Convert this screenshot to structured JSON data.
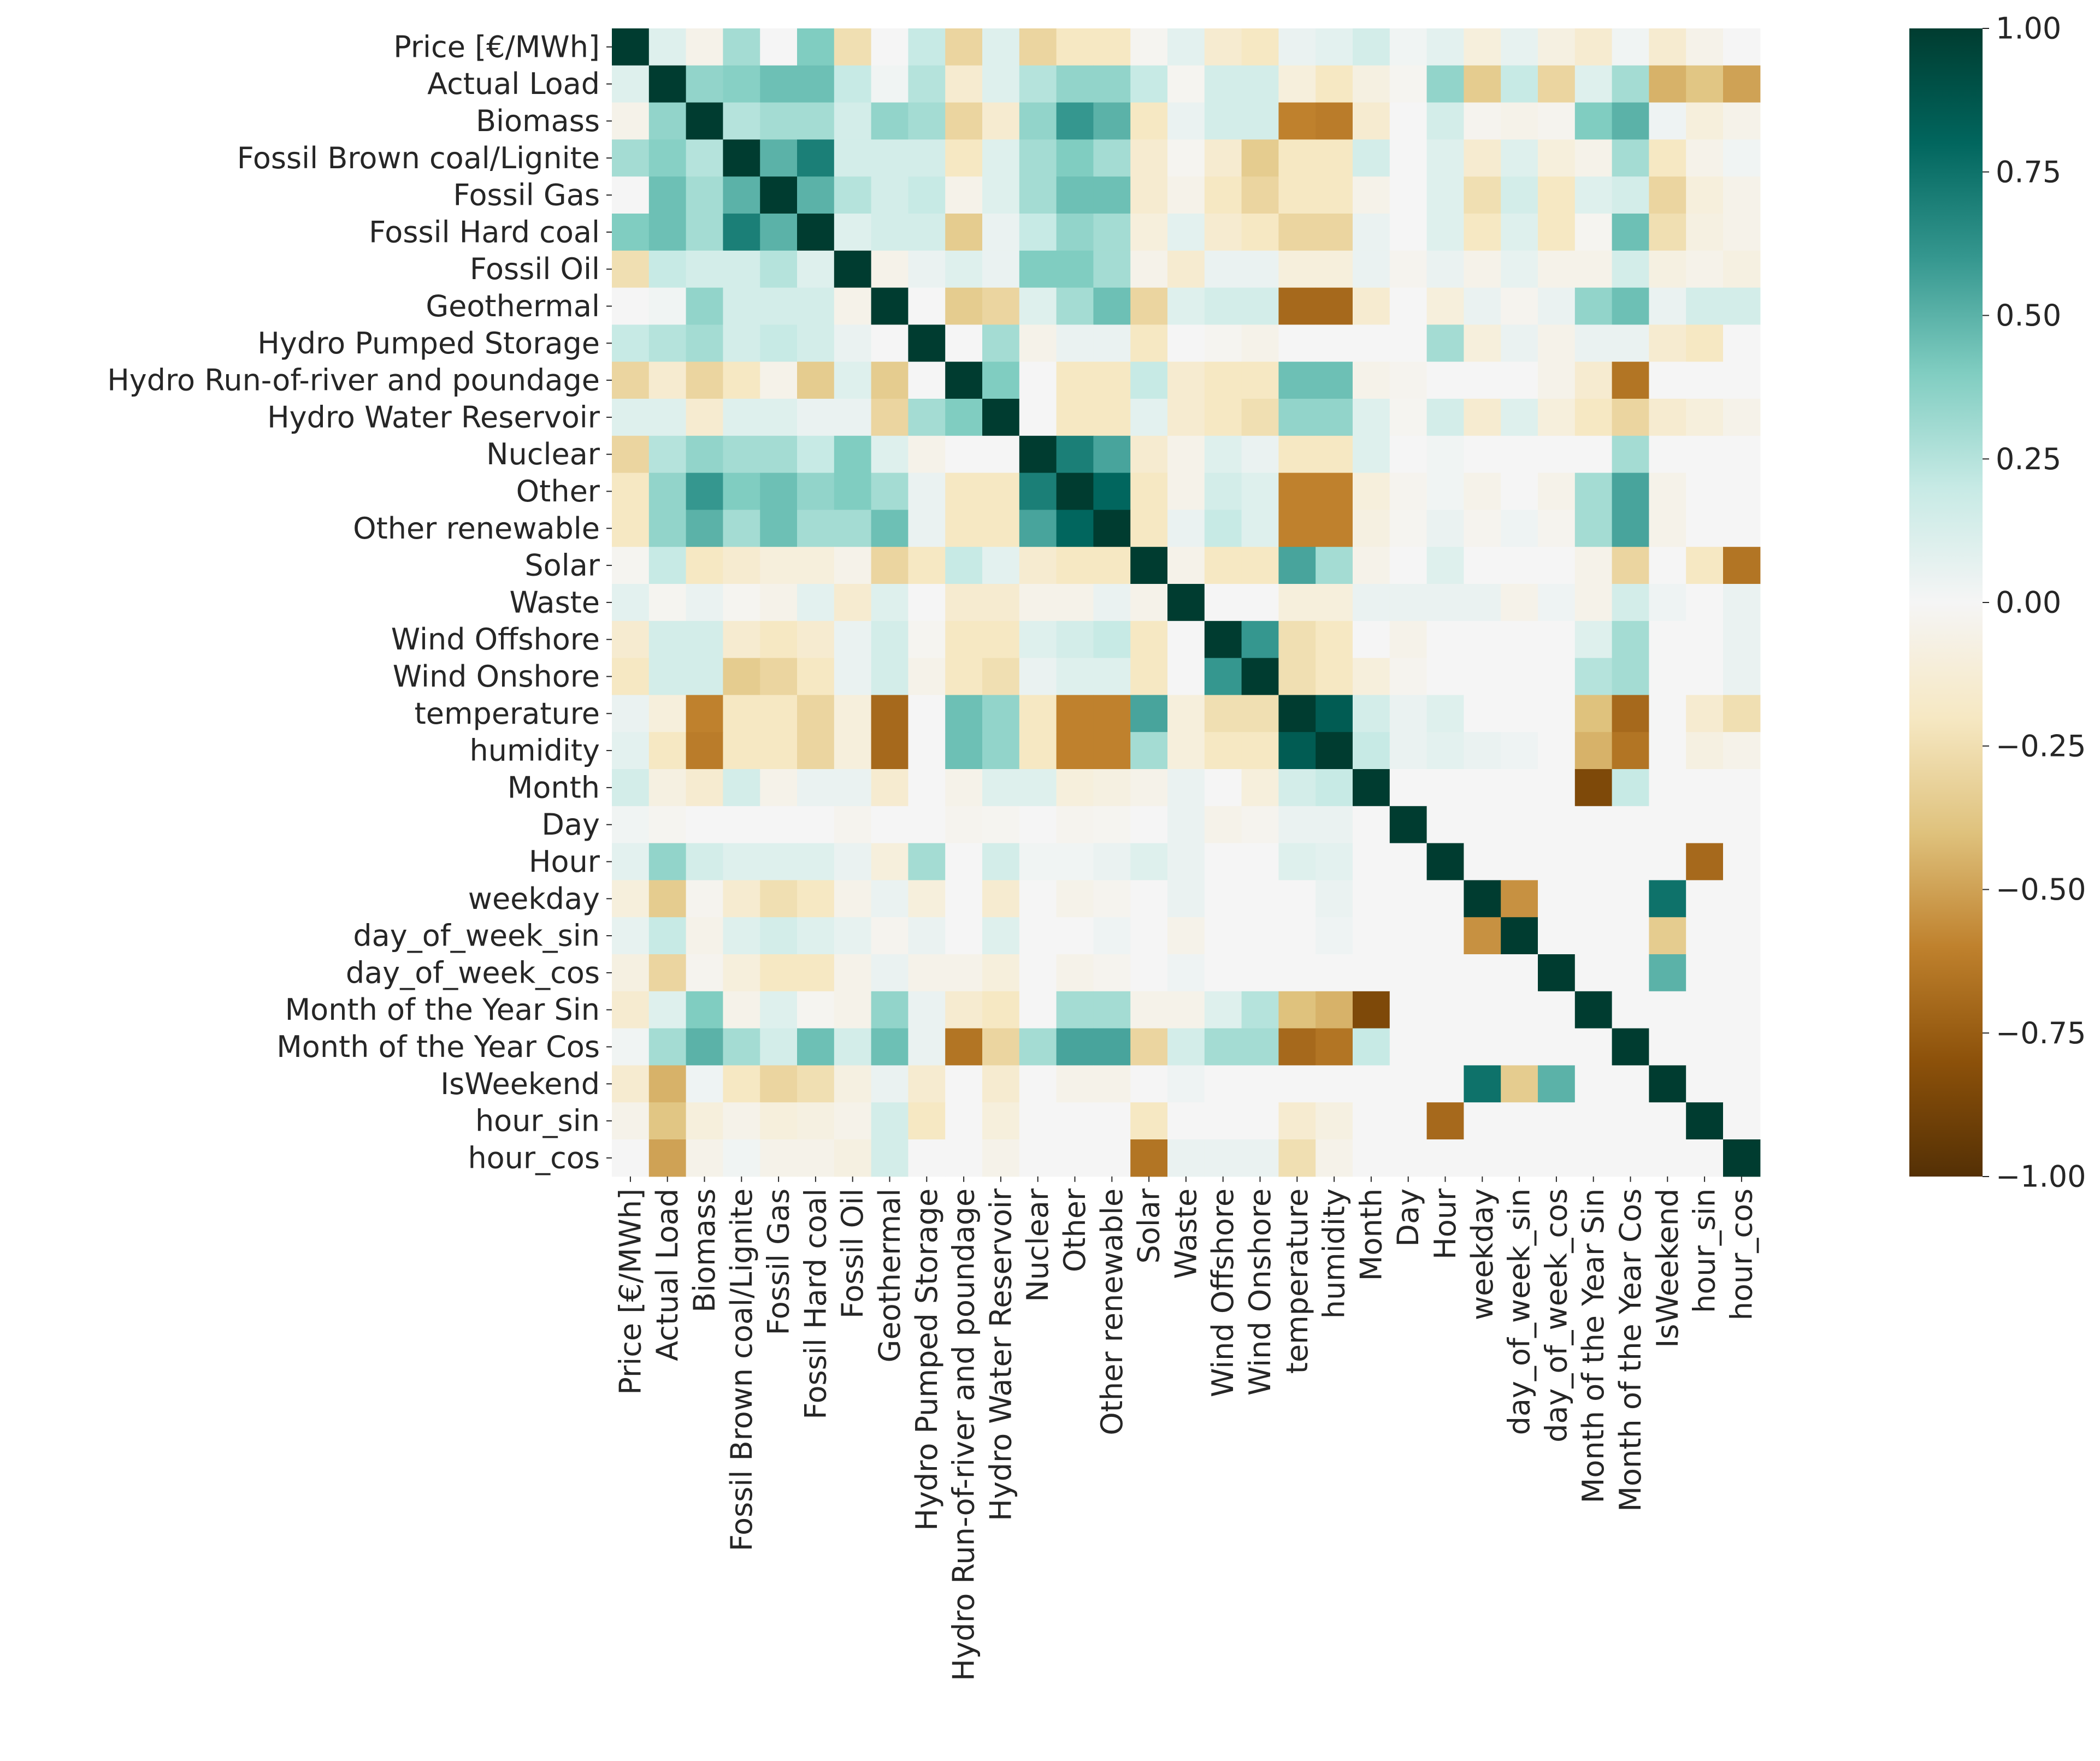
{
  "chart_data": {
    "type": "heatmap",
    "title": "",
    "xlabel": "",
    "ylabel": "",
    "colormap": "BrBG",
    "vmin": -1.0,
    "vmax": 1.0,
    "colorbar_ticks": [
      "1.00",
      "0.75",
      "0.50",
      "0.25",
      "0.00",
      "−0.25",
      "−0.50",
      "−0.75",
      "−1.00"
    ],
    "colorbar_tick_values": [
      1.0,
      0.75,
      0.5,
      0.25,
      0.0,
      -0.25,
      -0.5,
      -0.75,
      -1.0
    ],
    "labels": [
      "Price [€/MWh]",
      "Actual Load",
      "Biomass",
      "Fossil Brown coal/Lignite",
      "Fossil Gas",
      "Fossil Hard coal",
      "Fossil Oil",
      "Geothermal",
      "Hydro Pumped Storage",
      "Hydro Run-of-river and poundage",
      "Hydro Water Reservoir",
      "Nuclear",
      "Other",
      "Other renewable",
      "Solar",
      "Waste",
      "Wind Offshore",
      "Wind Onshore",
      "temperature",
      "humidity",
      "Month",
      "Day",
      "Hour",
      "weekday",
      "day_of_week_sin",
      "day_of_week_cos",
      "Month of the Year Sin",
      "Month of the Year Cos",
      "IsWeekend",
      "hour_sin",
      "hour_cos"
    ],
    "values": [
      [
        1.0,
        0.1,
        -0.05,
        0.3,
        0.0,
        0.4,
        -0.25,
        0.0,
        0.2,
        -0.3,
        0.1,
        -0.3,
        -0.2,
        -0.2,
        -0.02,
        0.08,
        -0.15,
        -0.2,
        0.05,
        0.08,
        0.15,
        0.02,
        0.08,
        -0.1,
        0.06,
        -0.08,
        -0.15,
        0.02,
        -0.15,
        -0.05,
        0.0
      ],
      [
        0.1,
        1.0,
        0.35,
        0.38,
        0.45,
        0.45,
        0.2,
        0.02,
        0.25,
        -0.15,
        0.1,
        0.25,
        0.35,
        0.35,
        0.2,
        -0.02,
        0.15,
        0.15,
        -0.1,
        -0.2,
        -0.08,
        -0.02,
        0.35,
        -0.35,
        0.2,
        -0.3,
        0.1,
        0.3,
        -0.45,
        -0.38,
        -0.5
      ],
      [
        -0.05,
        0.35,
        1.0,
        0.25,
        0.3,
        0.3,
        0.15,
        0.35,
        0.3,
        -0.3,
        -0.15,
        0.35,
        0.6,
        0.5,
        -0.2,
        0.05,
        0.15,
        0.15,
        -0.6,
        -0.62,
        -0.15,
        0.0,
        0.15,
        -0.03,
        -0.05,
        -0.03,
        0.4,
        0.5,
        0.03,
        -0.1,
        -0.05
      ],
      [
        0.3,
        0.38,
        0.25,
        1.0,
        0.5,
        0.7,
        0.15,
        0.15,
        0.15,
        -0.2,
        0.1,
        0.3,
        0.4,
        0.3,
        -0.15,
        -0.02,
        -0.15,
        -0.35,
        -0.2,
        -0.2,
        0.15,
        0.0,
        0.1,
        -0.15,
        0.1,
        -0.1,
        -0.05,
        0.3,
        -0.2,
        -0.05,
        0.02
      ],
      [
        0.0,
        0.45,
        0.3,
        0.5,
        1.0,
        0.5,
        0.25,
        0.15,
        0.2,
        -0.05,
        0.1,
        0.3,
        0.45,
        0.45,
        -0.15,
        -0.05,
        -0.2,
        -0.3,
        -0.2,
        -0.2,
        -0.05,
        0.0,
        0.1,
        -0.25,
        0.15,
        -0.2,
        0.1,
        0.15,
        -0.3,
        -0.1,
        -0.05
      ],
      [
        0.4,
        0.45,
        0.3,
        0.7,
        0.5,
        1.0,
        0.1,
        0.15,
        0.15,
        -0.35,
        0.05,
        0.2,
        0.35,
        0.3,
        -0.1,
        0.08,
        -0.15,
        -0.2,
        -0.3,
        -0.3,
        0.05,
        0.0,
        0.1,
        -0.2,
        0.1,
        -0.2,
        -0.02,
        0.45,
        -0.25,
        -0.08,
        -0.05
      ],
      [
        -0.25,
        0.2,
        0.15,
        0.15,
        0.25,
        0.1,
        1.0,
        -0.05,
        0.05,
        0.1,
        0.05,
        0.4,
        0.4,
        0.3,
        -0.05,
        -0.15,
        0.05,
        0.05,
        -0.1,
        -0.1,
        0.05,
        -0.03,
        0.05,
        -0.05,
        0.06,
        -0.05,
        -0.05,
        0.15,
        -0.08,
        -0.05,
        -0.08
      ],
      [
        0.0,
        0.02,
        0.35,
        0.15,
        0.15,
        0.15,
        -0.05,
        1.0,
        0.0,
        -0.35,
        -0.3,
        0.1,
        0.3,
        0.45,
        -0.3,
        0.1,
        0.15,
        0.15,
        -0.7,
        -0.7,
        -0.15,
        0.0,
        -0.1,
        0.05,
        -0.03,
        0.05,
        0.35,
        0.45,
        0.05,
        0.15,
        0.15
      ],
      [
        0.2,
        0.25,
        0.3,
        0.15,
        0.2,
        0.15,
        0.05,
        0.0,
        1.0,
        0.0,
        0.3,
        -0.05,
        0.05,
        0.05,
        -0.2,
        0.0,
        -0.02,
        -0.05,
        0.0,
        0.0,
        0.0,
        0.0,
        0.3,
        -0.1,
        0.05,
        -0.05,
        0.05,
        0.05,
        -0.15,
        -0.2,
        0.0
      ],
      [
        -0.3,
        -0.15,
        -0.3,
        -0.2,
        -0.05,
        -0.35,
        0.1,
        -0.35,
        0.0,
        1.0,
        0.4,
        0.0,
        -0.2,
        -0.2,
        0.2,
        -0.15,
        -0.2,
        -0.2,
        0.45,
        0.45,
        -0.05,
        -0.03,
        0.0,
        0.0,
        0.0,
        -0.05,
        -0.15,
        -0.65,
        0.0,
        0.0,
        0.0
      ],
      [
        0.1,
        0.1,
        -0.15,
        0.1,
        0.1,
        0.05,
        0.05,
        -0.3,
        0.3,
        0.4,
        1.0,
        0.0,
        -0.2,
        -0.2,
        0.08,
        -0.15,
        -0.2,
        -0.25,
        0.35,
        0.35,
        0.1,
        -0.02,
        0.15,
        -0.15,
        0.1,
        -0.1,
        -0.2,
        -0.3,
        -0.15,
        -0.1,
        -0.05
      ],
      [
        -0.3,
        0.25,
        0.35,
        0.3,
        0.3,
        0.2,
        0.4,
        0.1,
        -0.05,
        0.0,
        0.0,
        1.0,
        0.7,
        0.55,
        -0.15,
        -0.05,
        0.1,
        0.05,
        -0.2,
        -0.2,
        0.1,
        0.0,
        0.02,
        0.0,
        0.0,
        0.0,
        0.0,
        0.3,
        0.0,
        0.0,
        0.0
      ],
      [
        -0.2,
        0.35,
        0.6,
        0.4,
        0.45,
        0.35,
        0.4,
        0.3,
        0.05,
        -0.2,
        -0.2,
        0.7,
        1.0,
        0.8,
        -0.2,
        -0.05,
        0.15,
        0.1,
        -0.6,
        -0.6,
        -0.1,
        -0.03,
        0.02,
        -0.05,
        0.0,
        -0.05,
        0.3,
        0.55,
        -0.05,
        0.0,
        0.0
      ],
      [
        -0.2,
        0.35,
        0.5,
        0.3,
        0.45,
        0.3,
        0.3,
        0.45,
        0.05,
        -0.2,
        -0.2,
        0.55,
        0.8,
        1.0,
        -0.2,
        0.05,
        0.2,
        0.1,
        -0.6,
        -0.6,
        -0.08,
        -0.02,
        0.05,
        -0.03,
        0.03,
        -0.03,
        0.3,
        0.55,
        -0.05,
        0.0,
        0.0
      ],
      [
        -0.02,
        0.2,
        -0.2,
        -0.15,
        -0.1,
        -0.1,
        -0.05,
        -0.3,
        -0.2,
        0.2,
        0.08,
        -0.15,
        -0.2,
        -0.2,
        1.0,
        -0.05,
        -0.2,
        -0.2,
        0.55,
        0.3,
        -0.05,
        0.0,
        0.1,
        0.0,
        0.0,
        0.0,
        -0.05,
        -0.3,
        0.0,
        -0.2,
        -0.65
      ],
      [
        0.08,
        -0.02,
        0.05,
        -0.02,
        -0.05,
        0.08,
        -0.15,
        0.1,
        0.0,
        -0.15,
        -0.15,
        -0.05,
        -0.05,
        0.05,
        -0.05,
        1.0,
        0.0,
        0.0,
        -0.1,
        -0.1,
        0.05,
        0.05,
        0.05,
        0.05,
        -0.05,
        0.03,
        -0.05,
        0.15,
        0.03,
        0.0,
        0.05
      ],
      [
        -0.15,
        0.15,
        0.15,
        -0.15,
        -0.2,
        -0.15,
        0.05,
        0.15,
        -0.02,
        -0.2,
        -0.2,
        0.1,
        0.15,
        0.2,
        -0.2,
        0.0,
        1.0,
        0.6,
        -0.25,
        -0.2,
        0.0,
        -0.05,
        0.0,
        0.0,
        0.0,
        0.0,
        0.1,
        0.3,
        0.0,
        0.0,
        0.05
      ],
      [
        -0.2,
        0.15,
        0.15,
        -0.35,
        -0.3,
        -0.2,
        0.05,
        0.15,
        -0.05,
        -0.2,
        -0.25,
        0.05,
        0.1,
        0.1,
        -0.2,
        0.0,
        0.6,
        1.0,
        -0.25,
        -0.2,
        -0.1,
        -0.03,
        0.0,
        0.0,
        0.0,
        0.0,
        0.25,
        0.3,
        0.0,
        0.0,
        0.05
      ],
      [
        0.05,
        -0.1,
        -0.6,
        -0.2,
        -0.2,
        -0.3,
        -0.1,
        -0.7,
        0.0,
        0.45,
        0.35,
        -0.2,
        -0.6,
        -0.6,
        0.55,
        -0.1,
        -0.25,
        -0.25,
        1.0,
        0.85,
        0.15,
        0.05,
        0.1,
        0.0,
        0.0,
        0.0,
        -0.4,
        -0.7,
        0.0,
        -0.15,
        -0.25
      ],
      [
        0.08,
        -0.2,
        -0.62,
        -0.2,
        -0.2,
        -0.3,
        -0.1,
        -0.7,
        0.0,
        0.45,
        0.35,
        -0.2,
        -0.6,
        -0.6,
        0.3,
        -0.1,
        -0.2,
        -0.2,
        0.85,
        1.0,
        0.2,
        0.05,
        0.08,
        0.05,
        0.03,
        0.0,
        -0.45,
        -0.65,
        0.0,
        -0.08,
        -0.05
      ],
      [
        0.15,
        -0.08,
        -0.15,
        0.15,
        -0.05,
        0.05,
        0.05,
        -0.15,
        0.0,
        -0.05,
        0.1,
        0.1,
        -0.1,
        -0.08,
        -0.05,
        0.05,
        0.0,
        -0.1,
        0.15,
        0.2,
        1.0,
        0.0,
        0.0,
        0.0,
        0.0,
        0.0,
        -0.85,
        0.2,
        0.0,
        0.0,
        0.0
      ],
      [
        0.02,
        -0.02,
        0.0,
        0.0,
        0.0,
        0.0,
        -0.03,
        0.0,
        0.0,
        -0.03,
        -0.02,
        0.0,
        -0.03,
        -0.02,
        0.0,
        0.05,
        -0.05,
        -0.03,
        0.05,
        0.05,
        0.0,
        1.0,
        0.0,
        0.0,
        0.0,
        0.0,
        0.0,
        0.0,
        0.0,
        0.0,
        0.0
      ],
      [
        0.08,
        0.35,
        0.15,
        0.1,
        0.1,
        0.1,
        0.05,
        -0.1,
        0.3,
        0.0,
        0.15,
        0.02,
        0.02,
        0.05,
        0.1,
        0.05,
        0.0,
        0.0,
        0.1,
        0.08,
        0.0,
        0.0,
        1.0,
        0.0,
        0.0,
        0.0,
        0.0,
        0.0,
        0.0,
        -0.7,
        0.0
      ],
      [
        -0.1,
        -0.35,
        -0.03,
        -0.15,
        -0.25,
        -0.2,
        -0.05,
        0.05,
        -0.1,
        0.0,
        -0.15,
        0.0,
        -0.05,
        -0.03,
        0.0,
        0.05,
        0.0,
        0.0,
        0.0,
        0.05,
        0.0,
        0.0,
        0.0,
        1.0,
        -0.55,
        0.0,
        0.0,
        0.0,
        0.75,
        0.0,
        0.0
      ],
      [
        0.06,
        0.2,
        -0.05,
        0.1,
        0.15,
        0.1,
        0.06,
        -0.03,
        0.05,
        0.0,
        0.1,
        0.0,
        0.0,
        0.03,
        0.0,
        -0.05,
        0.0,
        0.0,
        0.0,
        0.03,
        0.0,
        0.0,
        0.0,
        -0.55,
        1.0,
        0.0,
        0.0,
        0.0,
        -0.35,
        0.0,
        0.0
      ],
      [
        -0.08,
        -0.3,
        -0.03,
        -0.1,
        -0.2,
        -0.2,
        -0.05,
        0.05,
        -0.05,
        -0.05,
        -0.1,
        0.0,
        -0.05,
        -0.03,
        0.0,
        0.03,
        0.0,
        0.0,
        0.0,
        0.0,
        0.0,
        0.0,
        0.0,
        0.0,
        0.0,
        1.0,
        0.0,
        0.0,
        0.5,
        0.0,
        0.0
      ],
      [
        -0.15,
        0.1,
        0.4,
        -0.05,
        0.1,
        -0.02,
        -0.05,
        0.35,
        0.05,
        -0.15,
        -0.2,
        0.0,
        0.3,
        0.3,
        -0.05,
        -0.05,
        0.1,
        0.25,
        -0.4,
        -0.45,
        -0.85,
        0.0,
        0.0,
        0.0,
        0.0,
        0.0,
        1.0,
        0.0,
        0.0,
        0.0,
        0.0
      ],
      [
        0.02,
        0.3,
        0.5,
        0.3,
        0.15,
        0.45,
        0.15,
        0.45,
        0.05,
        -0.65,
        -0.3,
        0.3,
        0.55,
        0.55,
        -0.3,
        0.15,
        0.3,
        0.3,
        -0.7,
        -0.65,
        0.2,
        0.0,
        0.0,
        0.0,
        0.0,
        0.0,
        0.0,
        1.0,
        0.0,
        0.0,
        0.0
      ],
      [
        -0.15,
        -0.45,
        0.03,
        -0.2,
        -0.3,
        -0.25,
        -0.08,
        0.05,
        -0.15,
        0.0,
        -0.15,
        0.0,
        -0.05,
        -0.05,
        0.0,
        0.03,
        0.0,
        0.0,
        0.0,
        0.0,
        0.0,
        0.0,
        0.0,
        0.75,
        -0.35,
        0.5,
        0.0,
        0.0,
        1.0,
        0.0,
        0.0
      ],
      [
        -0.05,
        -0.38,
        -0.1,
        -0.05,
        -0.1,
        -0.08,
        -0.05,
        0.15,
        -0.2,
        0.0,
        -0.1,
        0.0,
        0.0,
        0.0,
        -0.2,
        0.0,
        0.0,
        0.0,
        -0.15,
        -0.08,
        0.0,
        0.0,
        -0.7,
        0.0,
        0.0,
        0.0,
        0.0,
        0.0,
        0.0,
        1.0,
        0.0
      ],
      [
        0.0,
        -0.5,
        -0.05,
        0.02,
        -0.05,
        -0.05,
        -0.08,
        0.15,
        0.0,
        0.0,
        -0.05,
        0.0,
        0.0,
        0.0,
        -0.65,
        0.05,
        0.05,
        0.05,
        -0.25,
        -0.05,
        0.0,
        0.0,
        0.0,
        0.0,
        0.0,
        0.0,
        0.0,
        0.0,
        0.0,
        0.0,
        1.0
      ]
    ]
  }
}
